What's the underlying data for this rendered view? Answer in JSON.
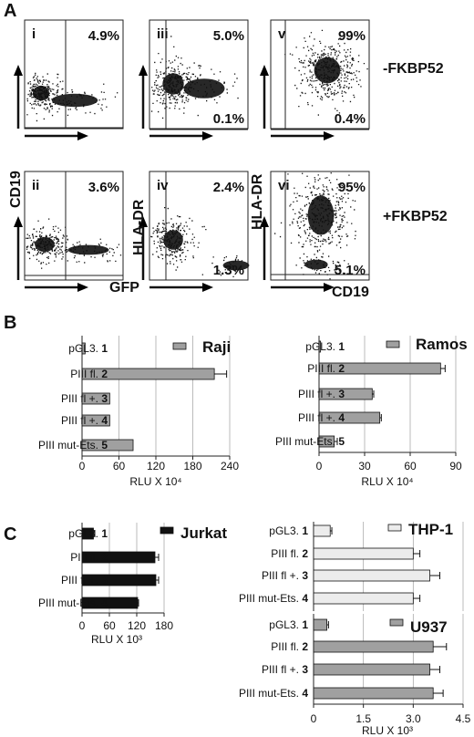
{
  "panel_labels": {
    "a": "A",
    "b": "B",
    "c": "C"
  },
  "panel_a": {
    "plots": [
      {
        "id": "i",
        "upper_right": "4.9%",
        "lower_right": ""
      },
      {
        "id": "iii",
        "upper_right": "5.0%",
        "lower_right": "0.1%"
      },
      {
        "id": "v",
        "upper_right": "99%",
        "lower_right": "0.4%"
      },
      {
        "id": "ii",
        "upper_right": "3.6%",
        "lower_right": ""
      },
      {
        "id": "iv",
        "upper_right": "2.4%",
        "lower_right": "1.3%"
      },
      {
        "id": "vi",
        "upper_right": "95%",
        "lower_right": "5.1%"
      }
    ],
    "row_labels": [
      "-FKBP52",
      "+FKBP52"
    ],
    "axis_labels": {
      "cd19_y": "CD19",
      "gfp_x": "GFP",
      "hladr_y1": "HLA-DR",
      "hladr_y2": "HLA-DR",
      "hladr_y3": "HLA-DR",
      "cd19_x": "CD19"
    }
  },
  "chart_data": [
    {
      "type": "bar",
      "orientation": "horizontal",
      "title": "Raji",
      "categories": [
        "pGL3. 1",
        "PIII fl. 2",
        "PIII fl +. 3",
        "PIII fl +. 4",
        "PIII mut-Ets. 5"
      ],
      "values": [
        5,
        215,
        45,
        45,
        83
      ],
      "errors": [
        0,
        20,
        0,
        0,
        0
      ],
      "xlim": [
        0,
        240
      ],
      "xticks": [
        "0",
        "60",
        "120",
        "180",
        "240"
      ],
      "xlabel": "RLU X 10⁴",
      "color": "#a0a0a0"
    },
    {
      "type": "bar",
      "orientation": "horizontal",
      "title": "Ramos",
      "categories": [
        "pGL3. 1",
        "PIII fl. 2",
        "PIII fl +. 3",
        "PIII fl +. 4",
        "PIII mut-Ets. 5"
      ],
      "values": [
        1,
        80,
        35,
        40,
        10
      ],
      "errors": [
        0,
        3,
        1,
        1,
        2
      ],
      "xlim": [
        0,
        90
      ],
      "xticks": [
        "0",
        "30",
        "60",
        "90"
      ],
      "xlabel": "RLU X 10⁴",
      "color": "#a0a0a0"
    },
    {
      "type": "bar",
      "orientation": "horizontal",
      "title": "Jurkat",
      "categories": [
        "pGL3. 1",
        "PIII fl. 2",
        "PIII fl +. 3",
        "PIII mut-Ets. 4"
      ],
      "values": [
        25,
        160,
        162,
        122
      ],
      "errors": [
        3,
        8,
        6,
        2
      ],
      "xlim": [
        0,
        180
      ],
      "xticks": [
        "0",
        "60",
        "120",
        "180"
      ],
      "xlabel": "RLU X 10³",
      "color": "#111111"
    },
    {
      "type": "bar",
      "orientation": "horizontal",
      "title": "THP-1",
      "categories": [
        "pGL3. 1",
        "PIII fl. 2",
        "PIII fl +. 3",
        "PIII mut-Ets. 4"
      ],
      "values": [
        0.5,
        3.0,
        3.5,
        3.0
      ],
      "errors": [
        0.05,
        0.2,
        0.3,
        0.2
      ],
      "xlim": [
        0,
        4.5
      ],
      "color": "#ececec"
    },
    {
      "type": "bar",
      "orientation": "horizontal",
      "title": "U937",
      "categories": [
        "pGL3. 1",
        "PIII fl. 2",
        "PIII fl +. 3",
        "PIII mut-Ets. 4"
      ],
      "values": [
        0.4,
        3.6,
        3.5,
        3.6
      ],
      "errors": [
        0.05,
        0.4,
        0.3,
        0.3
      ],
      "xlim": [
        0,
        4.5
      ],
      "xticks": [
        "0",
        "1.5",
        "3.0",
        "4.5"
      ],
      "xlabel": "RLU X 10³",
      "color": "#a0a0a0"
    }
  ]
}
